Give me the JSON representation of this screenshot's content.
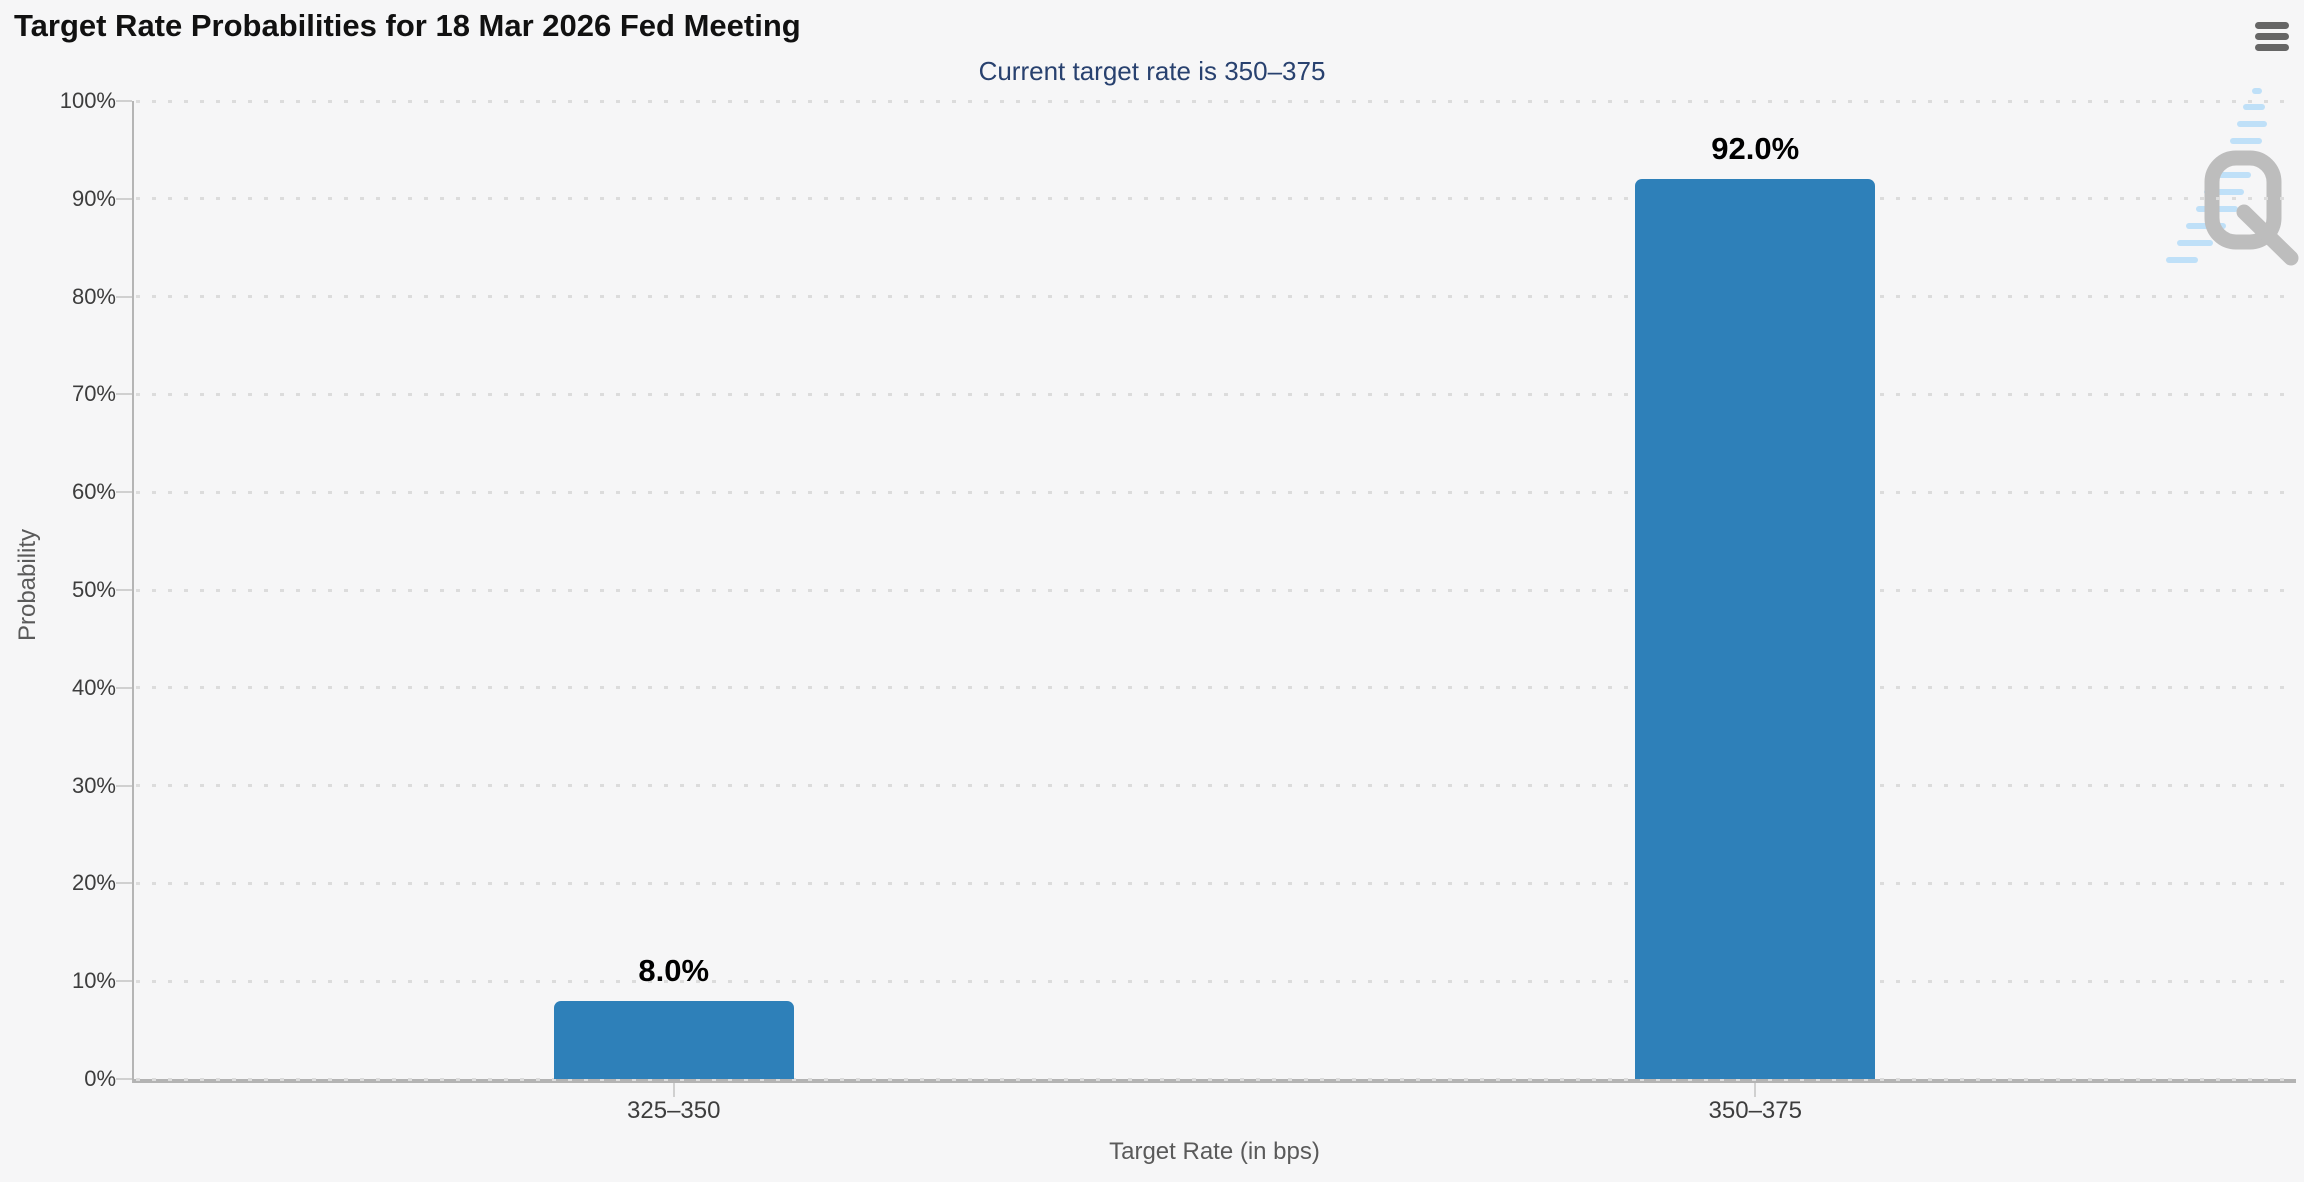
{
  "header": {
    "menu_icon": "hamburger-icon"
  },
  "watermark": {
    "letter": "Q"
  },
  "colors": {
    "background": "#f6f6f7",
    "bar": "#2e80b9",
    "title": "#111111",
    "subtitle": "#28416f",
    "grid_dot": "#dcdcdc",
    "y_axis_line": "#b5b5b5",
    "x_axis_line": "#b3b3b3",
    "tick": "#d0d0d0",
    "axis_label": "#3d3d3d",
    "axis_title": "#5a5a5a",
    "data_label": "#000000",
    "menu_icon": "#666666",
    "watermark_gray": "#bdbdbd",
    "watermark_blue": "#bfe0f8"
  },
  "chart_data": {
    "type": "bar",
    "title": "Target Rate Probabilities for 18 Mar 2026 Fed Meeting",
    "subtitle": "Current target rate is 350–375",
    "categories": [
      "325–350",
      "350–375"
    ],
    "values": [
      8.0,
      92.0
    ],
    "value_labels": [
      "8.0%",
      "92.0%"
    ],
    "xlabel": "Target Rate (in bps)",
    "ylabel": "Probability",
    "ylim": [
      0,
      100
    ],
    "ytick_step": 10,
    "ytick_labels": [
      "0%",
      "10%",
      "20%",
      "30%",
      "40%",
      "50%",
      "60%",
      "70%",
      "80%",
      "90%",
      "100%"
    ],
    "grid": "dotted horizontal",
    "legend": "none",
    "bar_color": "#2e80b9"
  }
}
